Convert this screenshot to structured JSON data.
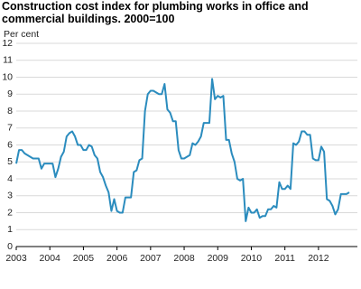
{
  "chart_data": {
    "type": "line",
    "title": "Construction cost index for plumbing works in office and commercial buildings. 2000=100",
    "y_label": "Per cent",
    "color": "#2b8cbe",
    "categories": [
      "2003",
      null,
      null,
      null,
      null,
      null,
      null,
      null,
      null,
      null,
      null,
      null,
      "2004",
      null,
      null,
      null,
      null,
      null,
      null,
      null,
      null,
      null,
      null,
      null,
      "2005",
      null,
      null,
      null,
      null,
      null,
      null,
      null,
      null,
      null,
      null,
      null,
      "2006",
      null,
      null,
      null,
      null,
      null,
      null,
      null,
      null,
      null,
      null,
      null,
      "2007",
      null,
      null,
      null,
      null,
      null,
      null,
      null,
      null,
      null,
      null,
      null,
      "2008",
      null,
      null,
      null,
      null,
      null,
      null,
      null,
      null,
      null,
      null,
      null,
      "2009",
      null,
      null,
      null,
      null,
      null,
      null,
      null,
      null,
      null,
      null,
      null,
      "2010",
      null,
      null,
      null,
      null,
      null,
      null,
      null,
      null,
      null,
      null,
      null,
      "2011",
      null,
      null,
      null,
      null,
      null,
      null,
      null,
      null,
      null,
      null,
      null,
      "2012",
      null,
      null,
      null,
      null,
      null,
      null,
      null,
      null,
      null,
      null,
      null
    ],
    "values": [
      4.9,
      5.7,
      5.7,
      5.5,
      5.4,
      5.3,
      5.2,
      5.2,
      5.2,
      4.6,
      4.9,
      4.9,
      4.9,
      4.9,
      4.1,
      4.6,
      5.3,
      5.6,
      6.5,
      6.7,
      6.8,
      6.5,
      6.0,
      6.0,
      5.7,
      5.7,
      6.0,
      5.9,
      5.4,
      5.2,
      4.4,
      4.1,
      3.6,
      3.2,
      2.1,
      2.8,
      2.1,
      2.0,
      2.0,
      2.9,
      2.9,
      2.9,
      4.4,
      4.5,
      5.1,
      5.2,
      8.0,
      9.0,
      9.2,
      9.2,
      9.1,
      9.0,
      9.0,
      9.6,
      8.1,
      7.9,
      7.4,
      7.4,
      5.7,
      5.2,
      5.2,
      5.3,
      5.4,
      6.1,
      6.0,
      6.2,
      6.5,
      7.3,
      7.3,
      7.3,
      9.9,
      8.7,
      8.9,
      8.8,
      8.9,
      6.3,
      6.3,
      5.5,
      5.0,
      4.0,
      3.9,
      4.0,
      1.5,
      2.3,
      2.0,
      2.0,
      2.2,
      1.7,
      1.8,
      1.8,
      2.2,
      2.2,
      2.4,
      2.3,
      3.8,
      3.4,
      3.4,
      3.6,
      3.4,
      6.1,
      6.0,
      6.2,
      6.8,
      6.8,
      6.6,
      6.6,
      5.2,
      5.1,
      5.1,
      5.9,
      5.6,
      2.8,
      2.7,
      2.4,
      1.9,
      2.2,
      3.1,
      3.1,
      3.1,
      3.2
    ],
    "ylim": [
      0,
      12
    ],
    "yticks": [
      0,
      1,
      2,
      3,
      4,
      5,
      6,
      7,
      8,
      9,
      10,
      11,
      12
    ],
    "grid": true
  }
}
